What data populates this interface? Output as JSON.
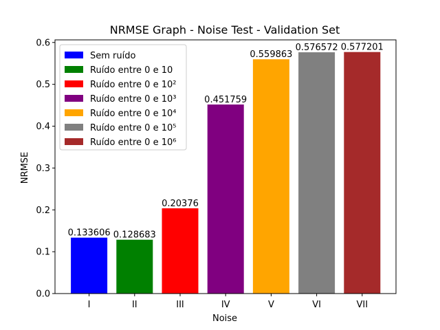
{
  "chart_data": {
    "type": "bar",
    "title": "NRMSE Graph - Noise Test - Validation Set",
    "xlabel": "Noise",
    "ylabel": "NRMSE",
    "categories": [
      "I",
      "II",
      "III",
      "IV",
      "V",
      "VI",
      "VII"
    ],
    "values": [
      0.133606,
      0.128683,
      0.20376,
      0.451759,
      0.559863,
      0.576572,
      0.577201
    ],
    "value_labels": [
      "0.133606",
      "0.128683",
      "0.20376",
      "0.451759",
      "0.559863",
      "0.576572",
      "0.577201"
    ],
    "colors": [
      "#0000ff",
      "#008000",
      "#ff0000",
      "#800080",
      "#ffa500",
      "#808080",
      "#a52a2a"
    ],
    "series_names": [
      "Sem ruído",
      "Ruído entre 0 e 10",
      "Ruído entre 0 e 10²",
      "Ruído entre 0 e 10³",
      "Ruído entre 0 e 10⁴",
      "Ruído entre 0 e 10⁵",
      "Ruído entre 0 e 10⁶"
    ],
    "ylim": [
      0,
      0.6062
    ],
    "yticks": [
      "0.0",
      "0.1",
      "0.2",
      "0.3",
      "0.4",
      "0.5",
      "0.6"
    ],
    "grid": false,
    "legend_position": "top-left"
  }
}
